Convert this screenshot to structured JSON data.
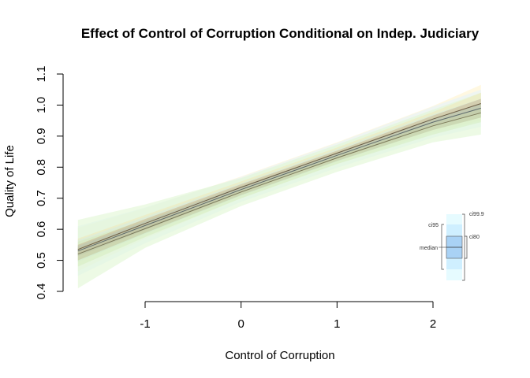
{
  "chart_data": {
    "type": "line",
    "title": "Effect of Control of Corruption Conditional on Indep. Judiciary",
    "xlabel": "Control of Corruption",
    "ylabel": "Quality of Life",
    "xlim": [
      -1.8,
      2.5
    ],
    "ylim": [
      0.4,
      1.1
    ],
    "xticks": [
      -1,
      0,
      1,
      2
    ],
    "xtick_labels": [
      "-1",
      "0",
      "1",
      "2"
    ],
    "yticks": [
      0.4,
      0.5,
      0.6,
      0.7,
      0.8,
      0.9,
      1.0,
      1.1
    ],
    "ytick_labels": [
      "0.4",
      "0.5",
      "0.6",
      "0.7",
      "0.8",
      "0.9",
      "1.0",
      "1.1"
    ],
    "grid": false,
    "series": [
      {
        "role": "upper",
        "x": [
          -1.7,
          -1.0,
          0.0,
          1.0,
          2.0,
          2.5
        ],
        "median": [
          0.535,
          0.619,
          0.735,
          0.845,
          0.955,
          1.005
        ],
        "ci80": [
          0.52,
          0.605,
          0.725,
          0.837,
          0.944,
          0.99,
          0.55,
          0.633,
          0.745,
          0.853,
          0.966,
          1.02
        ],
        "ci95": [
          0.5,
          0.592,
          0.716,
          0.827,
          0.932,
          0.975,
          0.57,
          0.646,
          0.754,
          0.863,
          0.978,
          1.04
        ],
        "ci999": [
          0.465,
          0.57,
          0.7,
          0.81,
          0.913,
          0.95,
          0.605,
          0.668,
          0.77,
          0.88,
          0.997,
          1.065
        ]
      },
      {
        "role": "middle",
        "x": [
          -1.7,
          -1.0,
          0.0,
          1.0,
          2.0,
          2.5
        ],
        "median": [
          0.53,
          0.612,
          0.728,
          0.838,
          0.945,
          0.99
        ],
        "ci80": [
          0.514,
          0.598,
          0.718,
          0.829,
          0.933,
          0.975,
          0.546,
          0.626,
          0.738,
          0.847,
          0.957,
          1.005
        ],
        "ci95": [
          0.495,
          0.585,
          0.708,
          0.818,
          0.92,
          0.96,
          0.565,
          0.64,
          0.748,
          0.858,
          0.97,
          1.02
        ],
        "ci999": [
          0.45,
          0.555,
          0.688,
          0.798,
          0.895,
          0.93,
          0.61,
          0.67,
          0.768,
          0.878,
          0.995,
          1.05
        ]
      },
      {
        "role": "lower",
        "x": [
          -1.7,
          -1.0,
          0.0,
          1.0,
          2.0,
          2.5
        ],
        "median": [
          0.52,
          0.602,
          0.72,
          0.83,
          0.933,
          0.975
        ],
        "ci80": [
          0.5,
          0.588,
          0.71,
          0.82,
          0.92,
          0.96,
          0.54,
          0.616,
          0.73,
          0.84,
          0.946,
          0.99
        ],
        "ci95": [
          0.48,
          0.575,
          0.7,
          0.81,
          0.905,
          0.945,
          0.56,
          0.63,
          0.74,
          0.85,
          0.96,
          1.005
        ],
        "ci999": [
          0.41,
          0.54,
          0.675,
          0.785,
          0.88,
          0.905,
          0.63,
          0.68,
          0.765,
          0.872,
          0.985,
          1.04
        ]
      }
    ],
    "legend": {
      "position": "right",
      "labels": {
        "ci999": "ci99.9",
        "ci95": "ci95",
        "ci80": "ci80",
        "median": "median"
      }
    },
    "colors": {
      "ci999": [
        "#fff3c8",
        "#e2f3ff",
        "#dff5cf"
      ],
      "ci95": [
        "#f2e4b0",
        "#cfe9e6",
        "#d3eab8"
      ],
      "ci80": [
        "#c8b089",
        "#b3c6b8",
        "#c2c49a"
      ],
      "median": [
        "#5e4a35",
        "#4d5b63",
        "#6f6a4a"
      ],
      "legend_ci999": "#e6fbff",
      "legend_ci95": "#cfefff",
      "legend_ci80": "#a9d2f5"
    }
  }
}
